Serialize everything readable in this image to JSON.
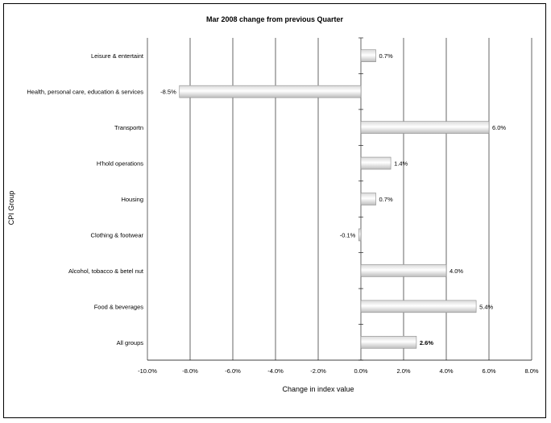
{
  "chart_data": {
    "type": "bar",
    "orientation": "horizontal",
    "title": "Mar 2008 change from previous Quarter",
    "xlabel": "Change in index value",
    "ylabel": "CPI Group",
    "xlim": [
      -10,
      8
    ],
    "x_ticks": [
      "-10.0%",
      "-8.0%",
      "-6.0%",
      "-4.0%",
      "-2.0%",
      "0.0%",
      "2.0%",
      "4.0%",
      "6.0%",
      "8.0%"
    ],
    "grid": true,
    "legend": "none",
    "categories": [
      "Leisure & entertaint",
      "Health, personal care, education & services",
      "Transportn",
      "H'hold operations",
      "Housing",
      "Clothing & footwear",
      "Alcohol, tobacco & betel nut",
      "Food & beverages",
      "All groups"
    ],
    "values": [
      0.7,
      -8.5,
      6.0,
      1.4,
      0.7,
      -0.1,
      4.0,
      5.4,
      2.6
    ],
    "data_labels": [
      "0.7%",
      "-8.5%",
      "6.0%",
      "1.4%",
      "0.7%",
      "-0.1%",
      "4.0%",
      "5.4%",
      "2.6%"
    ],
    "bold_label": "All groups"
  }
}
